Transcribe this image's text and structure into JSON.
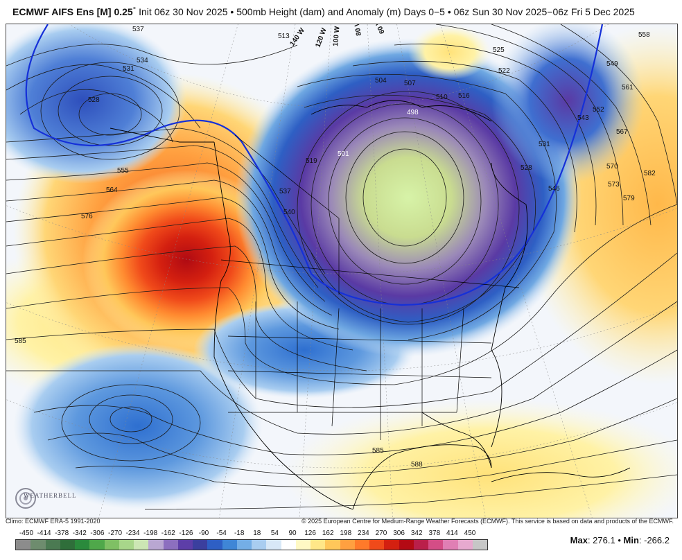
{
  "header": {
    "model": "ECMWF AIFS Ens [M] 0.25",
    "degree": "°",
    "description": "Init 06z 30 Nov 2025 • 500mb Height (dam) and Anomaly (m) Days 0−5 • 06z Sun 30 Nov 2025−06z Fri 5 Dec 2025"
  },
  "contour_labels": [
    "537",
    "534",
    "531",
    "528",
    "555",
    "564",
    "576",
    "585",
    "513",
    "501",
    "504",
    "507",
    "510",
    "516",
    "519",
    "525",
    "522",
    "528",
    "531",
    "537",
    "540",
    "543",
    "546",
    "549",
    "552",
    "558",
    "561",
    "567",
    "570",
    "573",
    "579",
    "582",
    "585",
    "588",
    "498"
  ],
  "longitude_labels": [
    "140 W",
    "120 W",
    "100 W",
    "80 W",
    "60 W"
  ],
  "credits": {
    "climo": "Climo: ECMWF ERA-5 1991-2020",
    "copyright": "© 2025 European Centre for Medium-Range Weather Forecasts (ECMWF). This service is based on data and products of the ECMWF."
  },
  "legend": {
    "ticks": [
      "-450",
      "-414",
      "-378",
      "-342",
      "-306",
      "-270",
      "-234",
      "-198",
      "-162",
      "-126",
      "-90",
      "-54",
      "-18",
      "18",
      "54",
      "90",
      "126",
      "162",
      "198",
      "234",
      "270",
      "306",
      "342",
      "378",
      "414",
      "450"
    ],
    "colors": [
      "#8c8c8c",
      "#6e8c6e",
      "#4b7a52",
      "#2f6e3a",
      "#2a8a3c",
      "#4fa84a",
      "#7fc064",
      "#a8d68a",
      "#cce6b4",
      "#b9a7d2",
      "#8c6fbf",
      "#5d3ea8",
      "#3b3f9e",
      "#2e5fc4",
      "#3f86d6",
      "#74aee6",
      "#a9cdf0",
      "#d8e8f7",
      "#ffffff",
      "#fff9c4",
      "#ffe788",
      "#ffc75a",
      "#ffa040",
      "#ff7a2a",
      "#f04a1a",
      "#d42010",
      "#b40a14",
      "#ba1f4a",
      "#d44d86",
      "#e07fb4",
      "#e7a9cf",
      "#c6c6c6"
    ]
  },
  "maxmin": {
    "max_label": "Max",
    "max_value": "276.1",
    "min_label": "Min",
    "min_value": "-266.2"
  },
  "logo": {
    "text": "WEATHERBELL"
  }
}
